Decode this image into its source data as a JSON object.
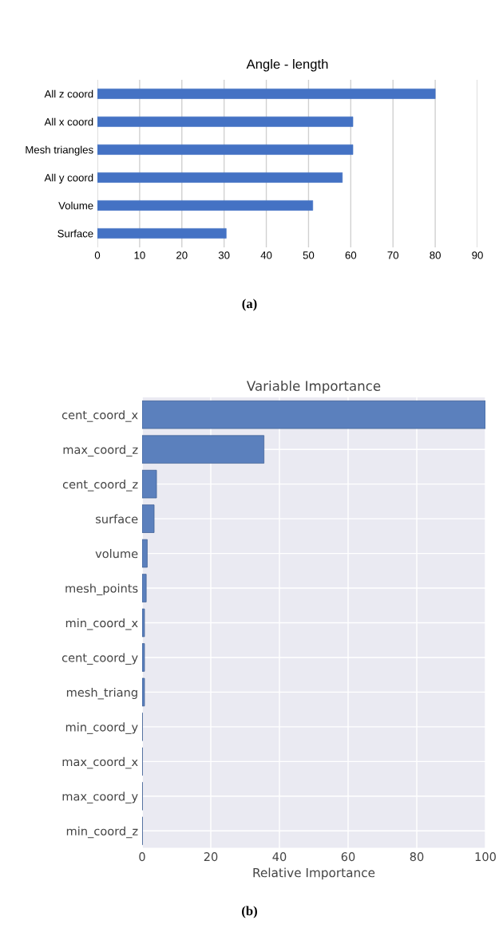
{
  "chart_data": [
    {
      "type": "bar",
      "orientation": "horizontal",
      "title": "Angle - length",
      "categories": [
        "All z coord",
        "All x coord",
        "Mesh triangles",
        "All y coord",
        "Volume",
        "Surface"
      ],
      "values": [
        80,
        60.5,
        60.5,
        58,
        51,
        30.5
      ],
      "color": "#4472c4",
      "xlim": [
        0,
        90
      ],
      "xticks": [
        0,
        10,
        20,
        30,
        40,
        50,
        60,
        70,
        80,
        90
      ],
      "grid": "x",
      "legend": false,
      "annotations": [
        "(a)"
      ]
    },
    {
      "type": "bar",
      "orientation": "horizontal",
      "title": "Variable Importance",
      "xlabel": "Relative Importance",
      "categories": [
        "cent_coord_x",
        "max_coord_z",
        "cent_coord_z",
        "surface",
        "volume",
        "mesh_points",
        "min_coord_x",
        "cent_coord_y",
        "mesh_triang",
        "min_coord_y",
        "max_coord_x",
        "max_coord_y",
        "min_coord_z"
      ],
      "values": [
        100,
        35.5,
        4.2,
        3.5,
        1.5,
        1.2,
        0.7,
        0.7,
        0.7,
        0.1,
        0.1,
        0.1,
        0.1
      ],
      "color": "#5b80bd",
      "xlim": [
        0,
        100
      ],
      "xticks": [
        0,
        20,
        40,
        60,
        80,
        100
      ],
      "grid": true,
      "legend": false,
      "annotations": [
        "(b)"
      ]
    }
  ]
}
